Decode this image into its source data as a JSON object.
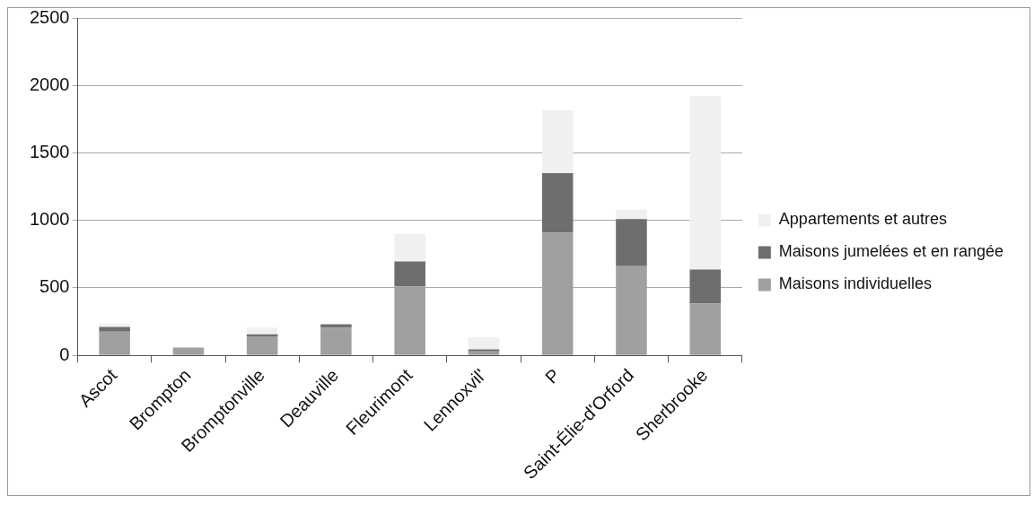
{
  "chart_data": {
    "type": "bar",
    "stacked": true,
    "categories": [
      "Ascot",
      "Brompton",
      "Bromptonville",
      "Deauville",
      "Fleurimont",
      "Lennoxvil'",
      "P",
      "Saint-Élie-d'Orford",
      "Sherbrooke"
    ],
    "series": [
      {
        "name": "Maisons individuelles",
        "color": "#a0a0a0",
        "values": [
          175,
          58,
          140,
          205,
          510,
          30,
          910,
          660,
          385
        ]
      },
      {
        "name": "Maisons jumelées et en rangée",
        "color": "#6e6e6e",
        "values": [
          35,
          0,
          15,
          25,
          185,
          15,
          440,
          350,
          250
        ]
      },
      {
        "name": "Appartements et autres",
        "color": "#f0f0f0",
        "values": [
          25,
          0,
          50,
          0,
          205,
          90,
          465,
          70,
          1285
        ]
      }
    ],
    "ylim": [
      0,
      2500
    ],
    "yticks": [
      0,
      500,
      1000,
      1500,
      2000,
      2500
    ],
    "grid": "y",
    "legend": "right"
  }
}
